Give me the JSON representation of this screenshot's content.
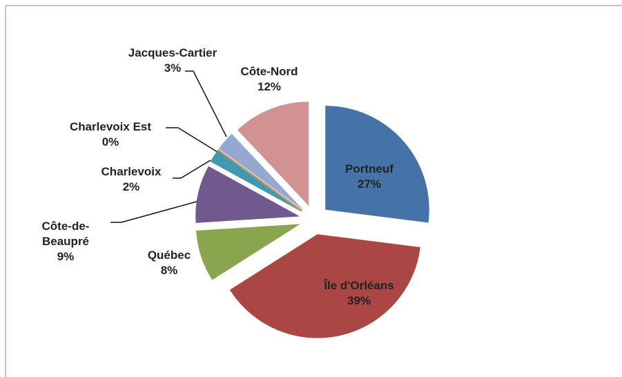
{
  "chart_data": {
    "type": "pie",
    "categories": [
      "Portneuf",
      "Île d'Orléans",
      "Québec",
      "Côte-de-Beaupré",
      "Charlevoix",
      "Charlevoix Est",
      "Jacques-Cartier",
      "Côte-Nord"
    ],
    "values": [
      27,
      39,
      8,
      9,
      2,
      0,
      3,
      12
    ],
    "value_labels": [
      "27%",
      "39%",
      "8%",
      "9%",
      "2%",
      "0%",
      "3%",
      "12%"
    ],
    "colors": [
      "#4572a7",
      "#aa4643",
      "#89a54e",
      "#71588f",
      "#4198af",
      "#db843d",
      "#93a9cf",
      "#d19392"
    ]
  }
}
